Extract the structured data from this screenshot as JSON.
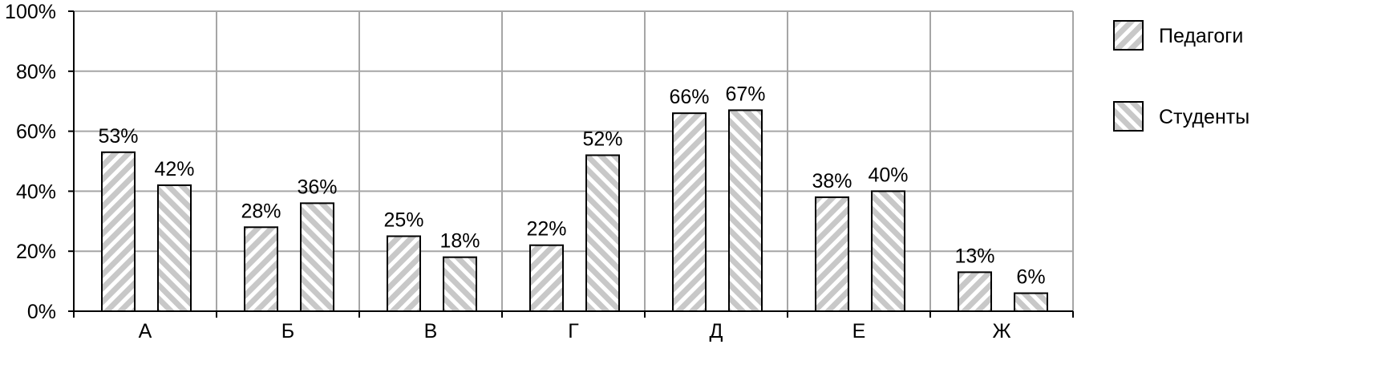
{
  "chart_data": {
    "type": "bar",
    "title": "",
    "xlabel": "",
    "ylabel": "",
    "categories": [
      "А",
      "Б",
      "В",
      "Г",
      "Д",
      "Е",
      "Ж"
    ],
    "series": [
      {
        "name": "Педагоги",
        "values": [
          53,
          28,
          25,
          22,
          66,
          38,
          13
        ],
        "pattern": "diagonal-up"
      },
      {
        "name": "Студенты",
        "values": [
          42,
          36,
          18,
          52,
          67,
          40,
          6
        ],
        "pattern": "diagonal-down"
      }
    ],
    "data_labels": [
      [
        "53%",
        "28%",
        "25%",
        "22%",
        "66%",
        "38%",
        "13%"
      ],
      [
        "42%",
        "36%",
        "18%",
        "52%",
        "67%",
        "40%",
        "6%"
      ]
    ],
    "ylim": [
      0,
      100
    ],
    "y_ticks": [
      0,
      20,
      40,
      60,
      80,
      100
    ],
    "y_tick_labels": [
      "0%",
      "20%",
      "40%",
      "60%",
      "80%",
      "100%"
    ],
    "grid": true,
    "legend_position": "right",
    "colors": {
      "grid": "#a6a6a6",
      "axis": "#000000",
      "bar_fill": "#c8c8c8",
      "bar_hatch": "#ffffff",
      "bar_border": "#000000"
    }
  }
}
